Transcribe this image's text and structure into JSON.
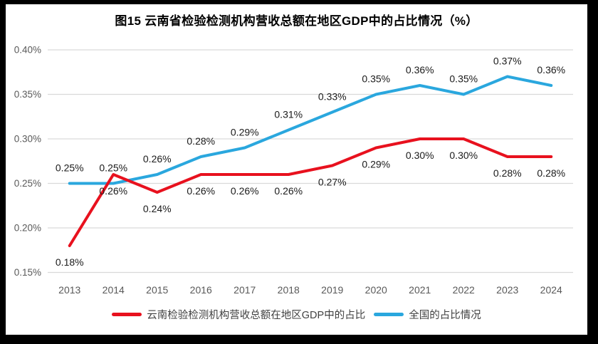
{
  "title": "图15 云南省检验检测机构营收总额在地区GDP中的占比情况（%）",
  "colors": {
    "frame": "#000000",
    "canvas": "#ffffff",
    "gridline": "#d9d9d9",
    "tick_text": "#595959",
    "data_label_text": "#1a1a1a",
    "yunnan_red": "#e8111e",
    "national_blue": "#2aa7de"
  },
  "chart_data": {
    "type": "line",
    "title": "图15 云南省检验检测机构营收总额在地区GDP中的占比情况（%）",
    "categories": [
      "2013",
      "2014",
      "2015",
      "2016",
      "2017",
      "2018",
      "2019",
      "2020",
      "2021",
      "2022",
      "2023",
      "2024"
    ],
    "series": [
      {
        "name": "云南检验检测机构营收总额在地区GDP中的占比",
        "color": "#e8111e",
        "label_position": "below",
        "values": [
          0.18,
          0.26,
          0.24,
          0.26,
          0.26,
          0.26,
          0.27,
          0.29,
          0.3,
          0.3,
          0.28,
          0.28
        ],
        "labels": [
          "0.18%",
          "0.26%",
          "0.24%",
          "0.26%",
          "0.26%",
          "0.26%",
          "0.27%",
          "0.29%",
          "0.30%",
          "0.30%",
          "0.28%",
          "0.28%"
        ]
      },
      {
        "name": "全国的占比情况",
        "color": "#2aa7de",
        "label_position": "above",
        "values": [
          0.25,
          0.25,
          0.26,
          0.28,
          0.29,
          0.31,
          0.33,
          0.35,
          0.36,
          0.35,
          0.37,
          0.36
        ],
        "labels": [
          "0.25%",
          "0.25%",
          "0.26%",
          "0.28%",
          "0.29%",
          "0.31%",
          "0.33%",
          "0.35%",
          "0.36%",
          "0.35%",
          "0.37%",
          "0.36%"
        ]
      }
    ],
    "y_ticks": [
      {
        "value": 0.4,
        "label": "0.40%"
      },
      {
        "value": 0.35,
        "label": "0.35%"
      },
      {
        "value": 0.3,
        "label": "0.30%"
      },
      {
        "value": 0.25,
        "label": "0.25%"
      },
      {
        "value": 0.2,
        "label": "0.20%"
      },
      {
        "value": 0.15,
        "label": "0.15%"
      }
    ],
    "ylim": [
      0.15,
      0.4
    ],
    "xlabel": "",
    "ylabel": "",
    "grid": true,
    "legend_position": "bottom"
  }
}
